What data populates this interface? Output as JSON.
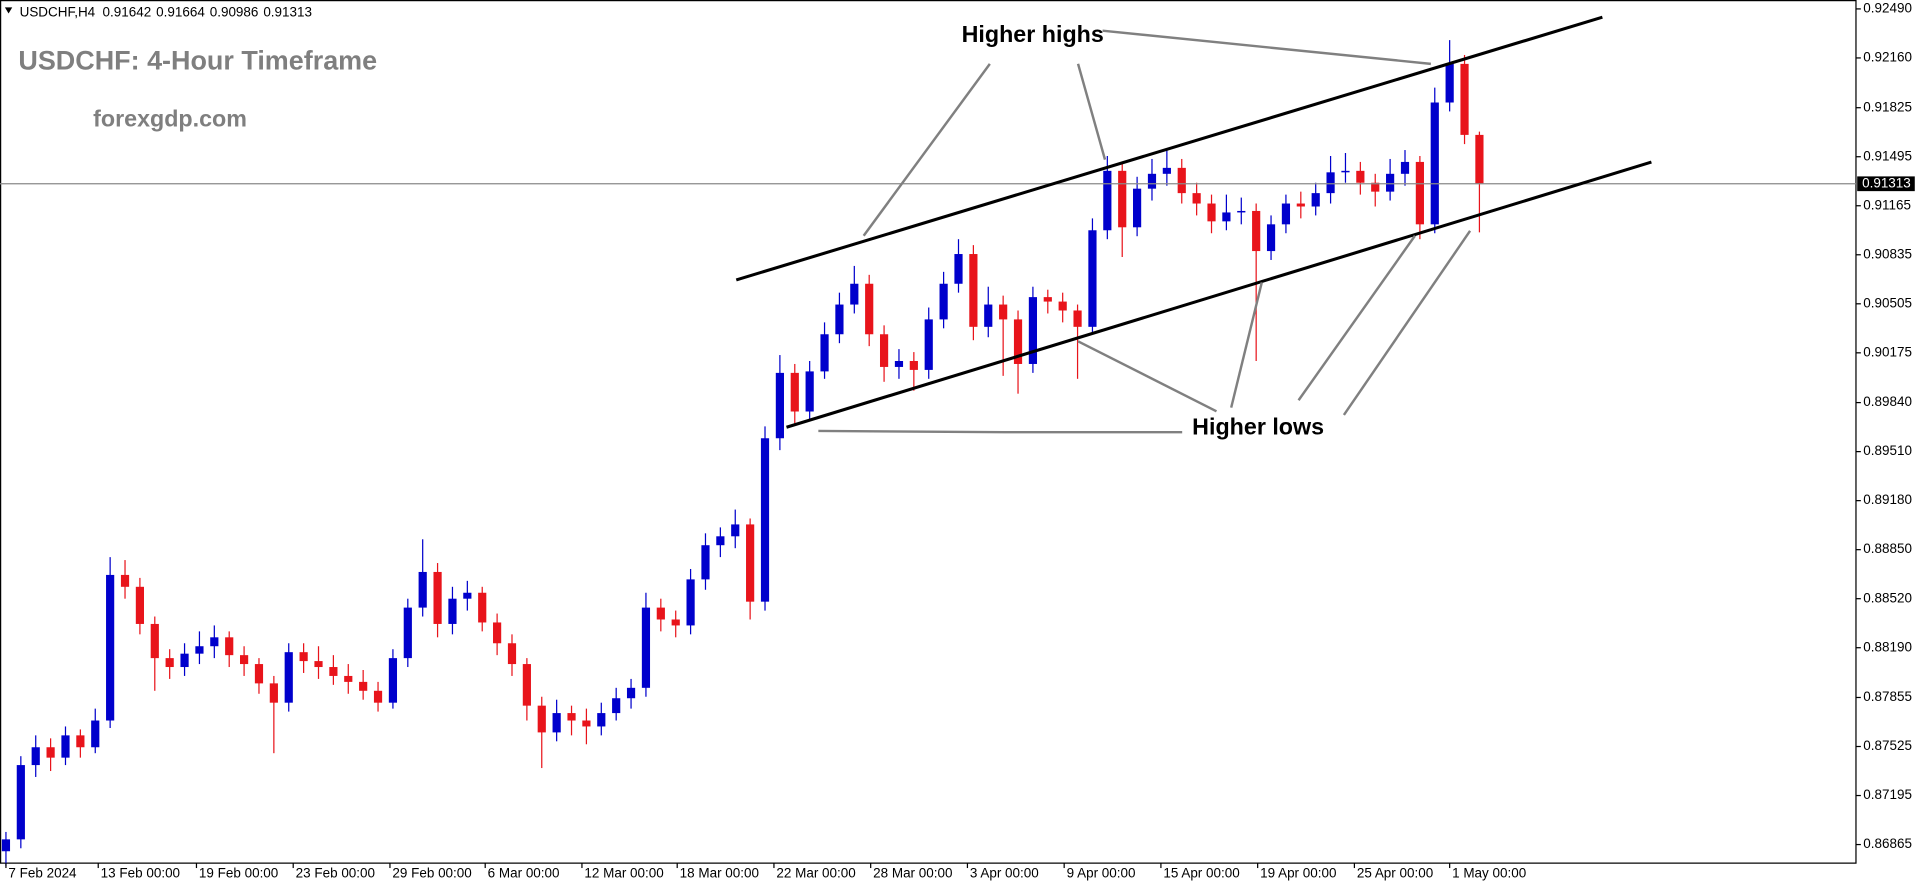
{
  "chart_data": {
    "type": "candlestick",
    "symbol": "USDCHF,H4",
    "title": "USDCHF: 4-Hour Timeframe",
    "subtitle": "forexgdp.com",
    "annotations": [
      "Higher highs",
      "Higher lows"
    ],
    "up_color": "#0000cc",
    "down_color": "#e8141b",
    "open": [
      0.8682,
      0.869,
      0.874,
      0.8752,
      0.8745,
      0.876,
      0.8752,
      0.877,
      0.8868,
      0.886,
      0.8835,
      0.8812,
      0.8806,
      0.8815,
      0.882,
      0.8826,
      0.8814,
      0.8808,
      0.8795,
      0.8782,
      0.8816,
      0.881,
      0.8806,
      0.88,
      0.8796,
      0.879,
      0.8782,
      0.8812,
      0.8846,
      0.887,
      0.8835,
      0.8852,
      0.8856,
      0.8836,
      0.8822,
      0.8808,
      0.878,
      0.8762,
      0.8775,
      0.877,
      0.8766,
      0.8775,
      0.8785,
      0.8792,
      0.8846,
      0.8838,
      0.8834,
      0.8865,
      0.8888,
      0.8894,
      0.8902,
      0.885,
      0.896,
      0.9004,
      0.8978,
      0.9005,
      0.903,
      0.905,
      0.9064,
      0.903,
      0.9008,
      0.9012,
      0.9006,
      0.904,
      0.9064,
      0.9084,
      0.9035,
      0.905,
      0.904,
      0.901,
      0.9055,
      0.9052,
      0.9046,
      0.9035,
      0.91,
      0.914,
      0.9102,
      0.9128,
      0.9138,
      0.9142,
      0.9125,
      0.9118,
      0.9106,
      0.9112,
      0.9113,
      0.9086,
      0.9104,
      0.9118,
      0.9116,
      0.9125,
      0.9139,
      0.914,
      0.9132,
      0.9126,
      0.9138,
      0.9146,
      0.9104,
      0.9186,
      0.9212,
      0.91642
    ],
    "high": [
      0.8695,
      0.8746,
      0.876,
      0.8758,
      0.8766,
      0.8764,
      0.8778,
      0.888,
      0.8878,
      0.8866,
      0.884,
      0.8818,
      0.8822,
      0.883,
      0.8834,
      0.883,
      0.882,
      0.8812,
      0.88,
      0.8822,
      0.8822,
      0.882,
      0.8814,
      0.8808,
      0.8804,
      0.8796,
      0.8818,
      0.8852,
      0.8892,
      0.8876,
      0.886,
      0.8864,
      0.886,
      0.8842,
      0.8828,
      0.8812,
      0.8786,
      0.8784,
      0.878,
      0.8778,
      0.8782,
      0.8792,
      0.8798,
      0.8856,
      0.8852,
      0.8844,
      0.8872,
      0.8896,
      0.89,
      0.8912,
      0.8906,
      0.8968,
      0.9016,
      0.901,
      0.9012,
      0.9038,
      0.9058,
      0.9076,
      0.907,
      0.9036,
      0.902,
      0.9018,
      0.9048,
      0.9072,
      0.9094,
      0.909,
      0.9062,
      0.9056,
      0.9046,
      0.9062,
      0.906,
      0.9058,
      0.905,
      0.9108,
      0.915,
      0.9146,
      0.9136,
      0.9148,
      0.9154,
      0.9148,
      0.9132,
      0.9124,
      0.9124,
      0.9122,
      0.9118,
      0.911,
      0.9124,
      0.9126,
      0.9132,
      0.915,
      0.9152,
      0.9146,
      0.9138,
      0.9148,
      0.9154,
      0.915,
      0.9196,
      0.9228,
      0.9218,
      0.91664
    ],
    "low": [
      0.8672,
      0.8684,
      0.8732,
      0.8736,
      0.874,
      0.8745,
      0.8748,
      0.8765,
      0.8852,
      0.8828,
      0.879,
      0.8798,
      0.88,
      0.8808,
      0.8812,
      0.8806,
      0.88,
      0.8788,
      0.8748,
      0.8776,
      0.8802,
      0.8798,
      0.8794,
      0.8788,
      0.8784,
      0.8776,
      0.8778,
      0.8806,
      0.884,
      0.8826,
      0.8828,
      0.8844,
      0.883,
      0.8814,
      0.88,
      0.877,
      0.8738,
      0.8756,
      0.876,
      0.8754,
      0.876,
      0.877,
      0.8778,
      0.8786,
      0.883,
      0.8826,
      0.8828,
      0.8858,
      0.888,
      0.8886,
      0.8838,
      0.8844,
      0.8952,
      0.897,
      0.8972,
      0.9,
      0.9024,
      0.9044,
      0.9022,
      0.8998,
      0.9,
      0.8992,
      0.9,
      0.9034,
      0.9058,
      0.9026,
      0.9028,
      0.9002,
      0.899,
      0.9004,
      0.9044,
      0.9038,
      0.9,
      0.903,
      0.9094,
      0.9082,
      0.9096,
      0.912,
      0.913,
      0.9118,
      0.911,
      0.9098,
      0.91,
      0.9104,
      0.9012,
      0.908,
      0.9098,
      0.9108,
      0.911,
      0.9118,
      0.9132,
      0.9124,
      0.9116,
      0.912,
      0.913,
      0.9094,
      0.9098,
      0.918,
      0.9158,
      0.90986
    ],
    "close": [
      0.869,
      0.874,
      0.8752,
      0.8745,
      0.876,
      0.8752,
      0.877,
      0.8868,
      0.886,
      0.8835,
      0.8812,
      0.8806,
      0.8815,
      0.882,
      0.8826,
      0.8814,
      0.8808,
      0.8795,
      0.8782,
      0.8816,
      0.881,
      0.8806,
      0.88,
      0.8796,
      0.879,
      0.8782,
      0.8812,
      0.8846,
      0.887,
      0.8835,
      0.8852,
      0.8856,
      0.8836,
      0.8822,
      0.8808,
      0.878,
      0.8762,
      0.8775,
      0.877,
      0.8766,
      0.8775,
      0.8785,
      0.8792,
      0.8846,
      0.8838,
      0.8834,
      0.8865,
      0.8888,
      0.8894,
      0.8902,
      0.885,
      0.896,
      0.9004,
      0.8978,
      0.9005,
      0.903,
      0.905,
      0.9064,
      0.903,
      0.9008,
      0.9012,
      0.9006,
      0.904,
      0.9064,
      0.9084,
      0.9035,
      0.905,
      0.904,
      0.901,
      0.9055,
      0.9052,
      0.9046,
      0.9035,
      0.91,
      0.914,
      0.9102,
      0.9128,
      0.9138,
      0.9142,
      0.9125,
      0.9118,
      0.9106,
      0.9112,
      0.9113,
      0.9086,
      0.9104,
      0.9118,
      0.9116,
      0.9125,
      0.9139,
      0.914,
      0.9132,
      0.9126,
      0.9138,
      0.9146,
      0.9104,
      0.9186,
      0.9212,
      0.91642,
      0.91313
    ],
    "xlim": [
      -0.4,
      124.3
    ],
    "xticks": [
      {
        "value": 0,
        "label": "7 Feb 2024"
      },
      {
        "value": 6.2,
        "label": "13 Feb 00:00"
      },
      {
        "value": 12.8,
        "label": "19 Feb 00:00"
      },
      {
        "value": 19.3,
        "label": "23 Feb 00:00"
      },
      {
        "value": 25.8,
        "label": "29 Feb 00:00"
      },
      {
        "value": 32.2,
        "label": "6 Mar 00:00"
      },
      {
        "value": 38.7,
        "label": "12 Mar 00:00"
      },
      {
        "value": 45.1,
        "label": "18 Mar 00:00"
      },
      {
        "value": 51.6,
        "label": "22 Mar 00:00"
      },
      {
        "value": 58.1,
        "label": "28 Mar 00:00"
      },
      {
        "value": 64.6,
        "label": "3 Apr 00:00"
      },
      {
        "value": 71.1,
        "label": "9 Apr 00:00"
      },
      {
        "value": 77.6,
        "label": "15 Apr 00:00"
      },
      {
        "value": 84.1,
        "label": "19 Apr 00:00"
      },
      {
        "value": 90.6,
        "label": "25 Apr 00:00"
      },
      {
        "value": 97.0,
        "label": "1 May 00:00"
      }
    ],
    "ylim": [
      0.8674,
      0.9255
    ],
    "yticks": [
      {
        "value": 0.9249,
        "label": "0.92490"
      },
      {
        "value": 0.9216,
        "label": "0.92160"
      },
      0.91825,
      0.91495,
      0.91165,
      0.90835,
      0.90505,
      0.90175,
      {
        "value": 0.8984,
        "label": "0.89840"
      },
      {
        "value": 0.8951,
        "label": "0.89510"
      },
      {
        "value": 0.8918,
        "label": "0.89180"
      },
      {
        "value": 0.8885,
        "label": "0.88850"
      },
      {
        "value": 0.8852,
        "label": "0.88520"
      },
      {
        "value": 0.8819,
        "label": "0.88190"
      },
      0.87855,
      0.87525,
      0.87195,
      0.86865
    ],
    "price_line": true
  }
}
